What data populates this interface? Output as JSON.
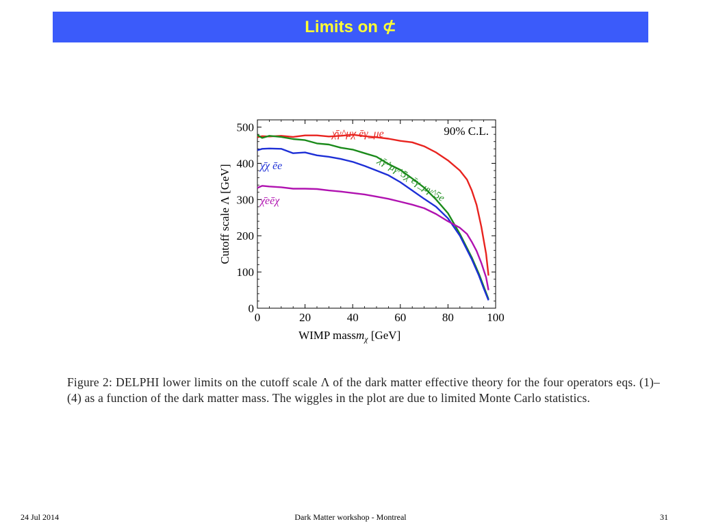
{
  "header": {
    "title": "Limits on ⊄"
  },
  "caption": "Figure 2: DELPHI lower limits on the cutoff scale Λ of the dark matter effective theory for the four operators eqs. (1)–(4) as a function of the dark matter mass. The wiggles in the plot are due to limited Monte Carlo statistics.",
  "footer": {
    "date": "24 Jul 2014",
    "center": "Dark Matter workshop - Montreal",
    "page": "31"
  },
  "colors": {
    "header_bg": "#3b5bfa",
    "title": "#ffff33",
    "series_red": "#e8231f",
    "series_green": "#1a8a1a",
    "series_blue": "#1d2fd6",
    "series_magenta": "#b012b0"
  },
  "chart_data": {
    "type": "line",
    "xlabel": "WIMP mass m_χ [GeV]",
    "ylabel": "Cutoff scale Λ [GeV]",
    "xlim": [
      0,
      100
    ],
    "ylim": [
      0,
      520
    ],
    "x_ticks": [
      "0",
      "20",
      "40",
      "60",
      "80",
      "100"
    ],
    "y_ticks": [
      "0",
      "100",
      "200",
      "300",
      "400",
      "500"
    ],
    "annotation": "90% C.L.",
    "grid": false,
    "series": [
      {
        "name": "χ̄γ^μχ ēγ_μe",
        "color": "#e8231f",
        "x": [
          0,
          2,
          5,
          10,
          15,
          20,
          25,
          30,
          35,
          40,
          45,
          50,
          55,
          60,
          65,
          70,
          75,
          80,
          85,
          88,
          90,
          92,
          94,
          96,
          97
        ],
        "y": [
          472,
          475,
          474,
          476,
          473,
          477,
          477,
          474,
          476,
          479,
          475,
          472,
          468,
          462,
          458,
          447,
          430,
          408,
          380,
          355,
          325,
          285,
          225,
          150,
          90
        ]
      },
      {
        "name": "χ̄γ^μγ^5χ ēγ_μγ^5e",
        "color": "#1a8a1a",
        "x": [
          0,
          2,
          5,
          10,
          15,
          20,
          25,
          30,
          35,
          40,
          45,
          50,
          55,
          60,
          65,
          70,
          75,
          80,
          85,
          90,
          93,
          95,
          97
        ],
        "y": [
          478,
          470,
          476,
          473,
          467,
          464,
          455,
          452,
          443,
          438,
          428,
          418,
          398,
          382,
          358,
          333,
          300,
          262,
          205,
          140,
          95,
          60,
          25
        ]
      },
      {
        "name": "χ̄χ ēe",
        "color": "#1d2fd6",
        "x": [
          0,
          2,
          5,
          10,
          15,
          20,
          25,
          30,
          35,
          40,
          45,
          50,
          55,
          60,
          65,
          70,
          75,
          80,
          85,
          90,
          93,
          95,
          97
        ],
        "y": [
          436,
          440,
          441,
          440,
          428,
          430,
          422,
          418,
          412,
          404,
          393,
          380,
          367,
          348,
          325,
          302,
          280,
          248,
          200,
          135,
          90,
          55,
          22
        ]
      },
      {
        "name": "χ̄eēχ",
        "color": "#b012b0",
        "x": [
          0,
          2,
          5,
          10,
          15,
          20,
          25,
          30,
          35,
          40,
          45,
          50,
          55,
          60,
          65,
          70,
          75,
          80,
          85,
          88,
          90,
          92,
          94,
          96,
          97
        ],
        "y": [
          332,
          338,
          336,
          334,
          330,
          330,
          329,
          325,
          322,
          318,
          314,
          308,
          302,
          294,
          286,
          276,
          260,
          240,
          222,
          205,
          183,
          158,
          125,
          85,
          50
        ]
      }
    ],
    "series_labels": [
      {
        "text": "χ̄γ^μχ ēγ_μe",
        "color": "#e8231f"
      },
      {
        "text": "χ̄γ^μγ^5χ ēγ_μγ^5e",
        "color": "#1a8a1a"
      },
      {
        "text": "χ̄χ ēe",
        "color": "#1d2fd6"
      },
      {
        "text": "χ̄eēχ",
        "color": "#b012b0"
      }
    ]
  }
}
